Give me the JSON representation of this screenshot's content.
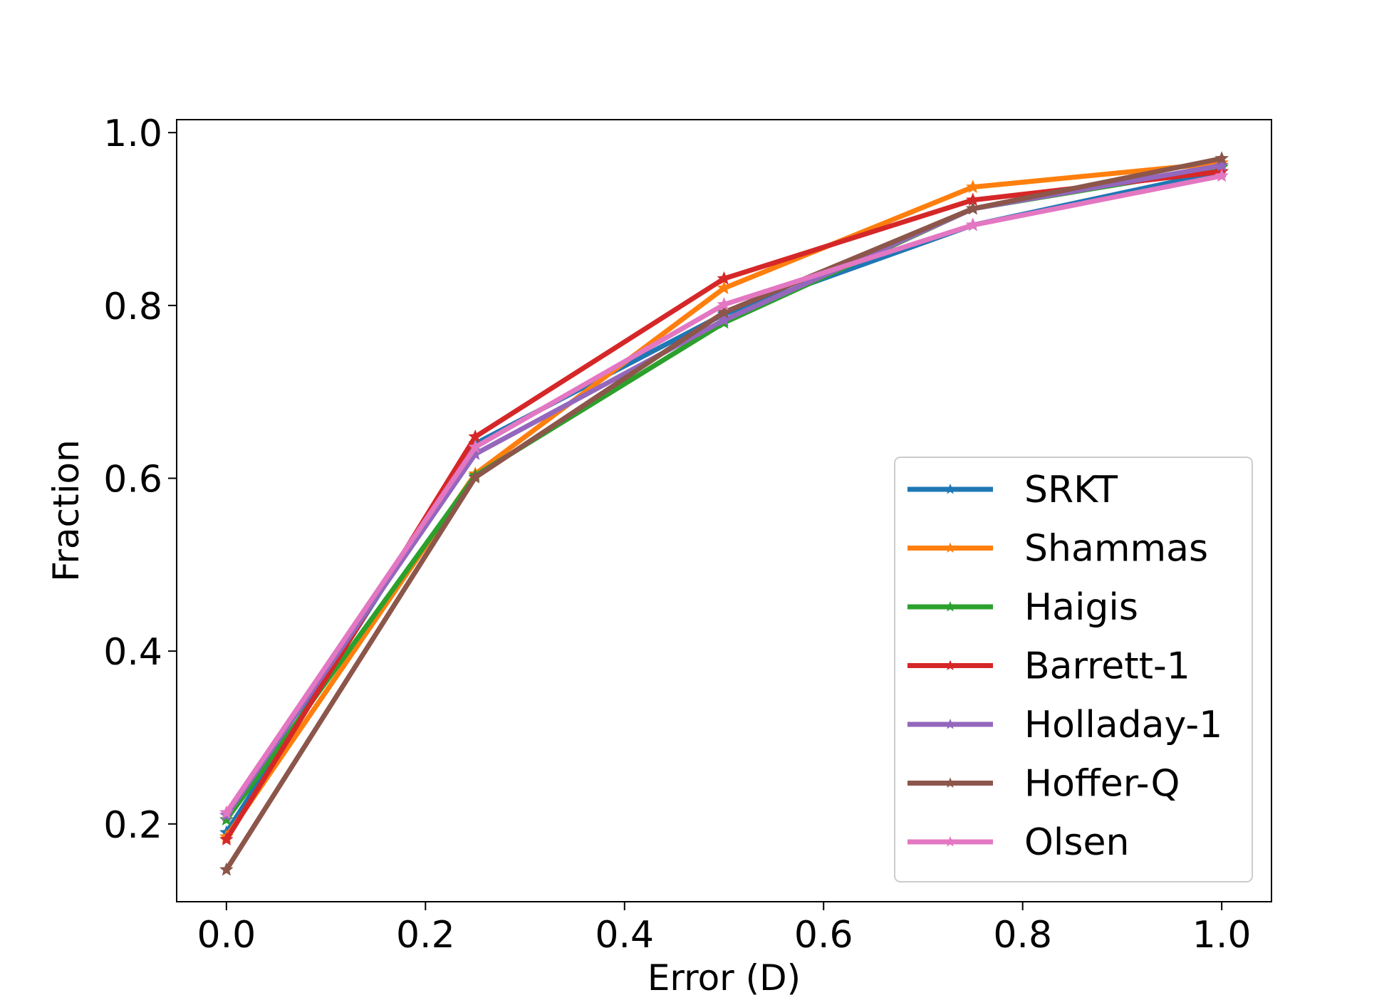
{
  "chart_data": {
    "type": "line",
    "title": "",
    "xlabel": "Error (D)",
    "ylabel": "Fraction",
    "xlim": [
      -0.05,
      1.05
    ],
    "ylim": [
      0.11,
      1.015
    ],
    "xticks": [
      0.0,
      0.2,
      0.4,
      0.6,
      0.8,
      1.0
    ],
    "xtick_labels": [
      "0.0",
      "0.2",
      "0.4",
      "0.6",
      "0.8",
      "1.0"
    ],
    "yticks": [
      0.2,
      0.4,
      0.6,
      0.8,
      1.0
    ],
    "ytick_labels": [
      "0.2",
      "0.4",
      "0.6",
      "0.8",
      "1.0"
    ],
    "grid": false,
    "legend_position": "lower-right",
    "marker": "star",
    "x": [
      0.0,
      0.25,
      0.5,
      0.75,
      1.0
    ],
    "series": [
      {
        "name": "SRKT",
        "color": "#1f77b4",
        "values": [
          0.19,
          0.64,
          0.79,
          0.893,
          0.955
        ]
      },
      {
        "name": "Shammas",
        "color": "#ff7f0e",
        "values": [
          0.185,
          0.605,
          0.82,
          0.937,
          0.965
        ]
      },
      {
        "name": "Haigis",
        "color": "#2ca02c",
        "values": [
          0.205,
          0.603,
          0.78,
          0.912,
          0.96
        ]
      },
      {
        "name": "Barrett-1",
        "color": "#d62728",
        "values": [
          0.182,
          0.648,
          0.831,
          0.922,
          0.955
        ]
      },
      {
        "name": "Holladay-1",
        "color": "#9467bd",
        "values": [
          0.21,
          0.628,
          0.783,
          0.912,
          0.962
        ]
      },
      {
        "name": "Hoffer-Q",
        "color": "#8c564b",
        "values": [
          0.147,
          0.601,
          0.792,
          0.912,
          0.97
        ]
      },
      {
        "name": "Olsen",
        "color": "#e377c2",
        "values": [
          0.213,
          0.636,
          0.801,
          0.893,
          0.95
        ]
      }
    ]
  }
}
